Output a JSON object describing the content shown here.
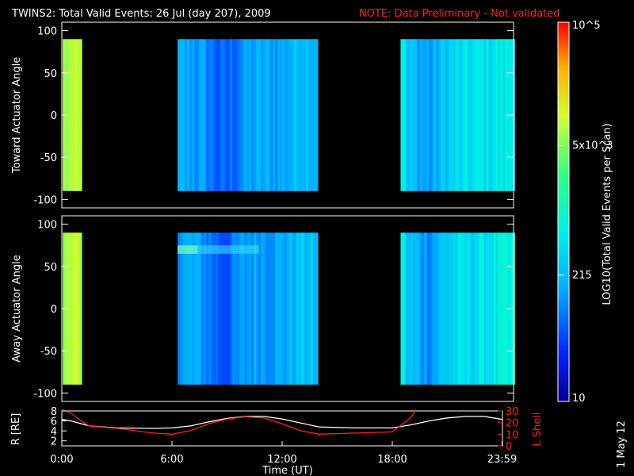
{
  "title": "TWINS2: Total Valid Events: 26 Jul (day 207), 2009",
  "note": "NOTE: Data Preliminary - Not validated",
  "side_date": "1 May 12",
  "colors": {
    "background": "#000000",
    "axes": "#ffffff",
    "note": "#ff2020",
    "r_line": "#ffffff",
    "lshell_line": "#ff2020"
  },
  "colorbar": {
    "label": "LOG10(Total Valid Events per Scan)",
    "ticks": [
      {
        "value": 10,
        "label": "10"
      },
      {
        "value": 215,
        "label": "215"
      },
      {
        "value": 5000,
        "label": "5x10^3"
      },
      {
        "value": 100000,
        "label": "10^5"
      }
    ],
    "scale": "log",
    "range": [
      10,
      100000
    ],
    "colormap": "rainbow (blue-cyan-green-yellow-red)"
  },
  "chart_data": [
    {
      "type": "heatmap",
      "name": "toward",
      "ylabel": "Toward Actuator Angle",
      "xlim_hours": [
        0,
        24
      ],
      "ylim": [
        -110,
        110
      ],
      "yticks": [
        -100,
        -50,
        0,
        50,
        100
      ],
      "data_angle_range": [
        -90,
        90
      ],
      "segments": [
        {
          "start_h": 0.0,
          "end_h": 1.1,
          "level": "high (yellow-green)"
        },
        {
          "start_h": 6.1,
          "end_h": 13.6,
          "level": "low (blue-cyan)"
        },
        {
          "start_h": 18.0,
          "end_h": 24.0,
          "level": "low-medium (blue-cyan-green)"
        }
      ]
    },
    {
      "type": "heatmap",
      "name": "away",
      "ylabel": "Away Actuator Angle",
      "xlim_hours": [
        0,
        24
      ],
      "ylim": [
        -110,
        110
      ],
      "yticks": [
        -100,
        -50,
        0,
        50,
        100
      ],
      "data_angle_range": [
        -90,
        90
      ],
      "segments": [
        {
          "start_h": 0.0,
          "end_h": 1.1,
          "level": "high (yellow-green)"
        },
        {
          "start_h": 6.1,
          "end_h": 13.6,
          "level": "low (blue-cyan), cyan band near +70"
        },
        {
          "start_h": 18.0,
          "end_h": 24.0,
          "level": "low-medium (blue-cyan-green)"
        }
      ]
    },
    {
      "type": "line",
      "name": "orbit",
      "ylabel_left": "R [RE]",
      "ylabel_right": "L Shell",
      "xlabel": "Time (UT)",
      "xticks": [
        "0:00",
        "6:00",
        "12:00",
        "18:00",
        "23:59"
      ],
      "xtick_hours": [
        0,
        6,
        12,
        18,
        23.98
      ],
      "ylim_left": [
        1,
        8
      ],
      "yticks_left": [
        2,
        4,
        6,
        8
      ],
      "ylim_right": [
        0,
        30
      ],
      "yticks_right": [
        0,
        10,
        20,
        30
      ],
      "series": [
        {
          "name": "R",
          "axis": "left",
          "x": [
            0,
            0.5,
            1,
            1.5,
            3,
            5,
            6,
            7,
            8,
            9,
            10,
            11,
            12,
            13,
            14,
            16,
            18,
            19,
            20,
            21,
            22,
            23,
            24
          ],
          "y": [
            6.3,
            6.0,
            5.5,
            5.0,
            4.6,
            4.5,
            4.6,
            5.0,
            5.8,
            6.5,
            6.9,
            6.9,
            6.4,
            5.6,
            4.8,
            4.6,
            4.6,
            5.2,
            6.0,
            6.6,
            6.9,
            6.9,
            6.3
          ]
        },
        {
          "name": "L Shell",
          "axis": "right",
          "x": [
            0,
            0.5,
            1,
            1.5,
            3,
            5,
            6,
            7,
            8,
            9,
            10,
            11,
            12,
            13,
            14,
            16,
            18,
            19,
            19.3
          ],
          "y": [
            33,
            28,
            22,
            17,
            15,
            11,
            10,
            13,
            19,
            23,
            25,
            24,
            19,
            13,
            10,
            11,
            12,
            24,
            33
          ]
        }
      ]
    }
  ]
}
